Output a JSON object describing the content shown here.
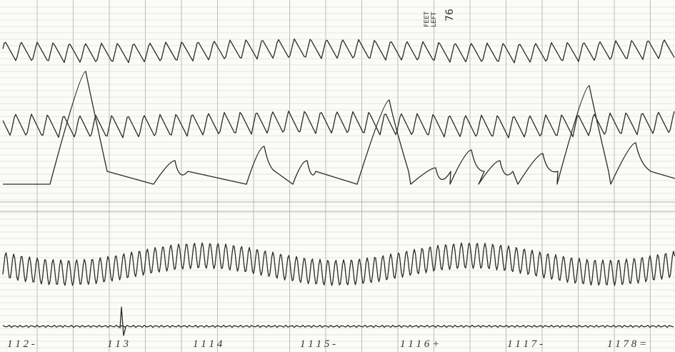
{
  "header": {
    "stamp_lines": [
      "FEET",
      "LEFT"
    ],
    "page_number": "76"
  },
  "time_markers": [
    "1 1 2 -",
    "1 1 3",
    "1 1 1 4",
    "1 1 1 5 -",
    "1 1 1 6 +",
    "1 1 1 7 -",
    "1 1 7 8 ="
  ]
}
